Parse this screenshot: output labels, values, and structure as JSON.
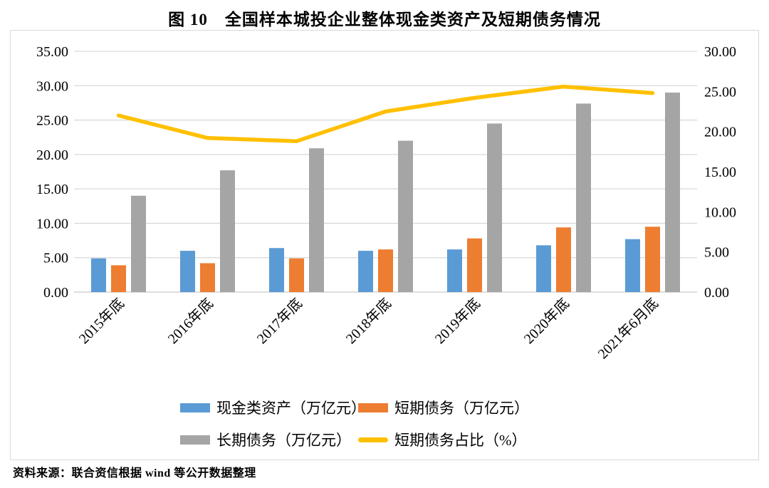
{
  "title": "图 10　全国样本城投企业整体现金类资产及短期债务情况",
  "source_note": "资料来源：联合资信根据 wind 等公开数据整理",
  "colors": {
    "cash_bar": "#5b9bd5",
    "short_debt_bar": "#ed7d31",
    "long_debt_bar": "#a5a5a5",
    "ratio_line": "#ffc000",
    "gridline": "#d9d9d9",
    "axis_line": "#c9c9c9",
    "border": "#d9d9d9",
    "text": "#000000"
  },
  "chart_data": {
    "type": "bar",
    "subtype": "grouped-bar-with-line-overlay",
    "categories": [
      "2015年底",
      "2016年底",
      "2017年底",
      "2018年底",
      "2019年底",
      "2020年底",
      "2021年6月底"
    ],
    "series": [
      {
        "name": "现金类资产（万亿元）",
        "type": "bar",
        "axis": "left",
        "color": "#5b9bd5",
        "values": [
          4.9,
          6.0,
          6.4,
          6.0,
          6.2,
          6.8,
          7.7
        ]
      },
      {
        "name": "短期债务（万亿元）",
        "type": "bar",
        "axis": "left",
        "color": "#ed7d31",
        "values": [
          3.9,
          4.2,
          4.9,
          6.2,
          7.8,
          9.4,
          9.5
        ]
      },
      {
        "name": "长期债务（万亿元）",
        "type": "bar",
        "axis": "left",
        "color": "#a5a5a5",
        "values": [
          14.0,
          17.7,
          20.9,
          22.0,
          24.5,
          27.4,
          29.0
        ]
      },
      {
        "name": "短期债务占比（%）",
        "type": "line",
        "axis": "right",
        "color": "#ffc000",
        "values": [
          22.0,
          19.2,
          18.8,
          22.5,
          24.2,
          25.6,
          24.8
        ]
      }
    ],
    "left_axis": {
      "min": 0,
      "max": 35,
      "step": 5
    },
    "right_axis": {
      "min": 0,
      "max": 30,
      "step": 5
    },
    "left_ticks": [
      "0.00",
      "5.00",
      "10.00",
      "15.00",
      "20.00",
      "25.00",
      "30.00",
      "35.00"
    ],
    "right_ticks": [
      "0.00",
      "5.00",
      "10.00",
      "15.00",
      "20.00",
      "25.00",
      "30.00"
    ],
    "grid": true,
    "legend_position": "bottom",
    "x_label_rotation_deg": -45
  }
}
